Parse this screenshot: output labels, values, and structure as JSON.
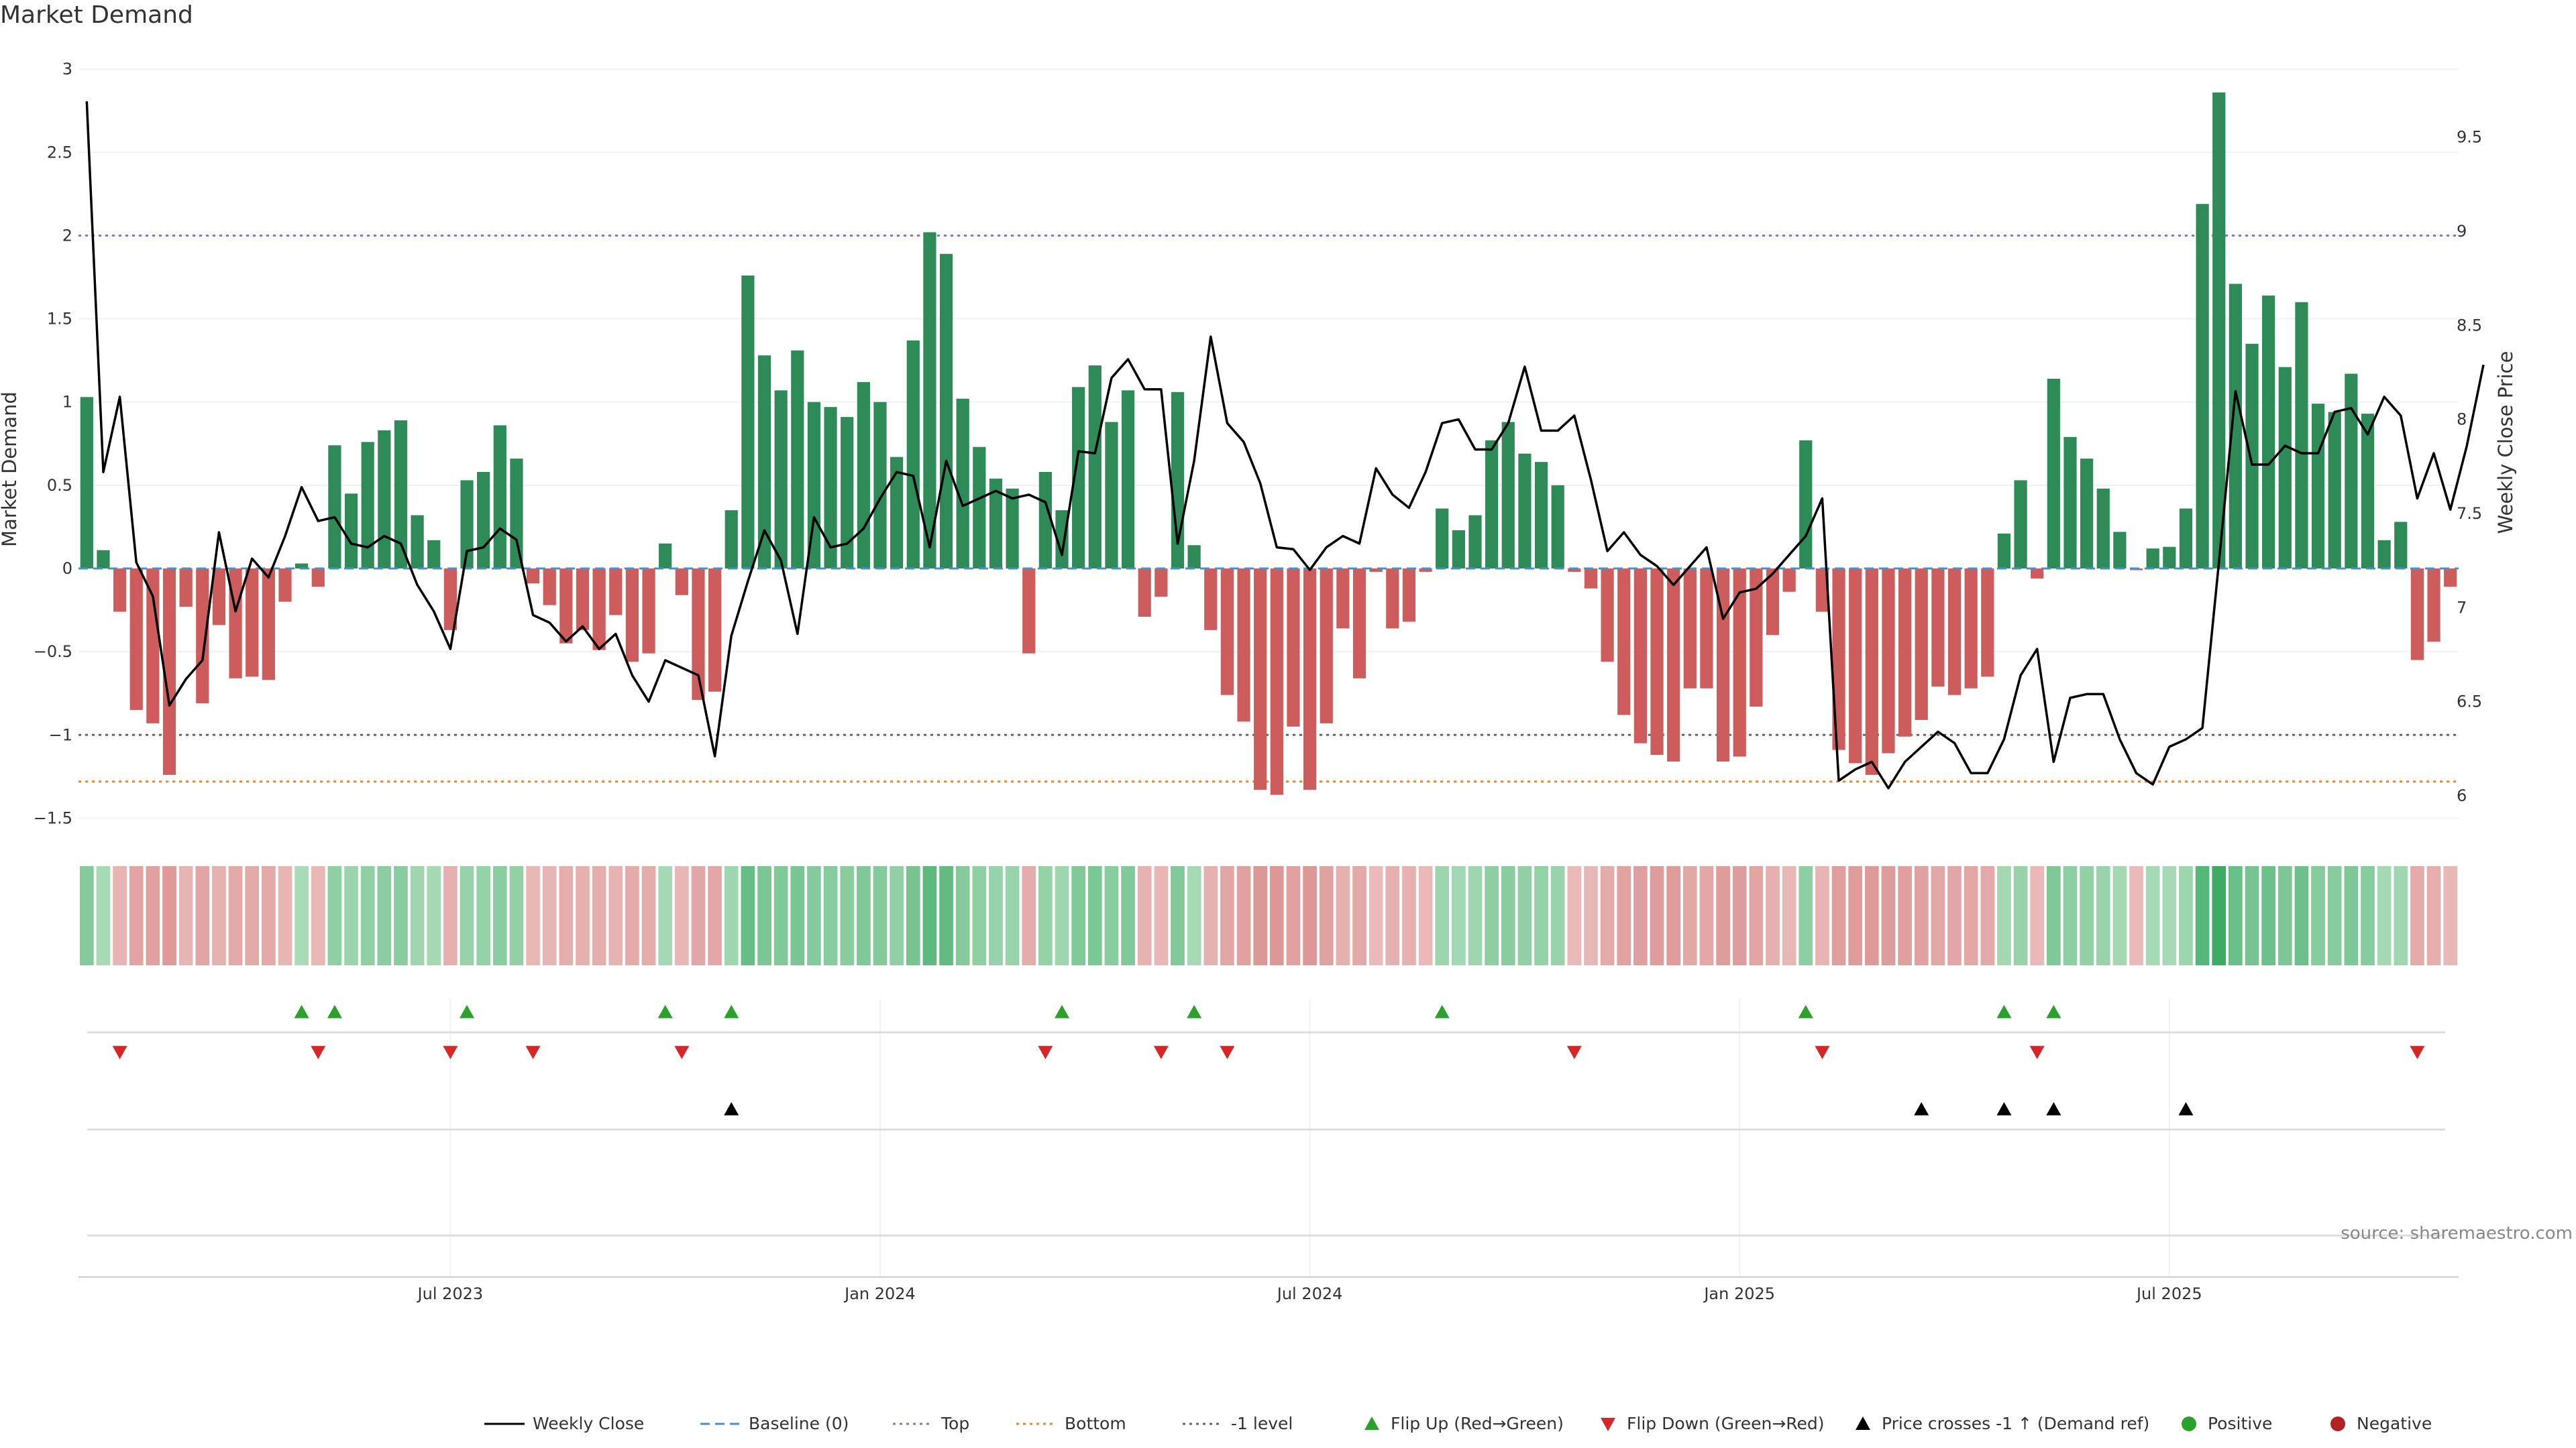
{
  "chart_data": {
    "type": "bar+line",
    "title": "Market Demand",
    "ylabel_left": "Market Demand",
    "ylabel_right": "Weekly Close Price",
    "ylim_left": [
      -1.7,
      3.0
    ],
    "ylim_right": [
      5.85,
      9.85
    ],
    "yticks_left": [
      {
        "v": 3,
        "label": "3"
      },
      {
        "v": 2.5,
        "label": "2.5"
      },
      {
        "v": 2,
        "label": "2"
      },
      {
        "v": 1.5,
        "label": "1.5"
      },
      {
        "v": 1,
        "label": "1"
      },
      {
        "v": 0.5,
        "label": "0.5"
      },
      {
        "v": 0,
        "label": "0"
      },
      {
        "v": -0.5,
        "label": "−0.5"
      },
      {
        "v": -1,
        "label": "−1"
      },
      {
        "v": -1.5,
        "label": "−1.5"
      }
    ],
    "yticks_right": [
      {
        "v": 9.5,
        "label": "9.5"
      },
      {
        "v": 9,
        "label": "9"
      },
      {
        "v": 8.5,
        "label": "8.5"
      },
      {
        "v": 8,
        "label": "8"
      },
      {
        "v": 7.5,
        "label": "7.5"
      },
      {
        "v": 7,
        "label": "7"
      },
      {
        "v": 6.5,
        "label": "6.5"
      },
      {
        "v": 6,
        "label": "6"
      }
    ],
    "xticks": [
      {
        "week": 22,
        "label": "Jul 2023"
      },
      {
        "week": 48,
        "label": "Jan 2024"
      },
      {
        "week": 74,
        "label": "Jul 2024"
      },
      {
        "week": 100,
        "label": "Jan 2025"
      },
      {
        "week": 126,
        "label": "Jul 2025"
      }
    ],
    "levels": {
      "top": 2.0,
      "bottom": -1.28,
      "minus_one": -1.0,
      "baseline": 0
    },
    "demand": [
      1.03,
      0.11,
      -0.26,
      -0.85,
      -0.93,
      -1.24,
      -0.23,
      -0.81,
      -0.34,
      -0.66,
      -0.65,
      -0.67,
      -0.2,
      0.03,
      -0.11,
      0.74,
      0.45,
      0.76,
      0.83,
      0.89,
      0.32,
      0.17,
      -0.37,
      0.53,
      0.58,
      0.86,
      0.66,
      -0.09,
      -0.22,
      -0.45,
      -0.37,
      -0.49,
      -0.28,
      -0.56,
      -0.51,
      0.15,
      -0.16,
      -0.79,
      -0.74,
      0.35,
      1.76,
      1.28,
      1.07,
      1.31,
      1.0,
      0.97,
      0.91,
      1.12,
      1.0,
      0.67,
      1.37,
      2.02,
      1.89,
      1.02,
      0.73,
      0.54,
      0.48,
      -0.51,
      0.58,
      0.35,
      1.09,
      1.22,
      0.88,
      1.07,
      -0.29,
      -0.17,
      1.06,
      0.14,
      -0.37,
      -0.76,
      -0.92,
      -1.33,
      -1.36,
      -0.95,
      -1.33,
      -0.93,
      -0.36,
      -0.66,
      -0.02,
      -0.36,
      -0.32,
      -0.02,
      0.36,
      0.23,
      0.32,
      0.77,
      0.88,
      0.69,
      0.64,
      0.5,
      -0.02,
      -0.12,
      -0.56,
      -0.88,
      -1.05,
      -1.12,
      -1.16,
      -0.72,
      -0.72,
      -1.16,
      -1.13,
      -0.83,
      -0.4,
      -0.14,
      0.77,
      -0.26,
      -1.09,
      -1.17,
      -1.24,
      -1.11,
      -1.01,
      -0.91,
      -0.71,
      -0.76,
      -0.72,
      -0.65,
      0.21,
      0.53,
      -0.06,
      1.14,
      0.79,
      0.66,
      0.48,
      0.22,
      -0.01,
      0.12,
      0.13,
      0.36,
      2.19,
      2.86,
      1.71,
      1.35,
      1.64,
      1.21,
      1.6,
      0.99,
      0.94,
      1.17,
      0.93,
      0.17,
      0.28,
      -0.55,
      -0.44,
      -0.11
    ],
    "weekly_close": [
      9.69,
      7.72,
      8.12,
      7.24,
      7.06,
      6.48,
      6.62,
      6.72,
      7.4,
      6.98,
      7.26,
      7.16,
      7.38,
      7.64,
      7.46,
      7.48,
      7.34,
      7.32,
      7.38,
      7.34,
      7.12,
      6.98,
      6.78,
      7.3,
      7.32,
      7.42,
      7.36,
      6.96,
      6.92,
      6.82,
      6.9,
      6.78,
      6.86,
      6.64,
      6.5,
      6.72,
      6.68,
      6.64,
      6.21,
      6.85,
      7.14,
      7.41,
      7.25,
      6.86,
      7.48,
      7.32,
      7.34,
      7.42,
      7.58,
      7.72,
      7.7,
      7.32,
      7.78,
      7.54,
      7.58,
      7.62,
      7.58,
      7.6,
      7.56,
      7.28,
      7.83,
      7.82,
      8.22,
      8.32,
      8.16,
      8.16,
      7.34,
      7.78,
      8.44,
      7.98,
      7.88,
      7.66,
      7.32,
      7.31,
      7.2,
      7.32,
      7.38,
      7.34,
      7.74,
      7.6,
      7.53,
      7.72,
      7.98,
      8.0,
      7.84,
      7.84,
      7.98,
      8.28,
      7.94,
      7.94,
      8.02,
      7.68,
      7.3,
      7.4,
      7.28,
      7.22,
      7.12,
      7.22,
      7.32,
      6.94,
      7.08,
      7.1,
      7.18,
      7.28,
      7.38,
      7.58,
      6.08,
      6.14,
      6.18,
      6.04,
      6.18,
      6.26,
      6.34,
      6.28,
      6.12,
      6.12,
      6.3,
      6.64,
      6.78,
      6.18,
      6.52,
      6.54,
      6.54,
      6.3,
      6.12,
      6.06,
      6.26,
      6.3,
      6.36,
      7.24,
      8.15,
      7.76,
      7.76,
      7.86,
      7.82,
      7.82,
      8.04,
      8.06,
      7.92,
      8.12,
      8.02,
      7.58,
      7.82,
      7.52,
      7.86,
      8.29
    ],
    "intensity_strip_note": "color shade of each week mirrors demand magnitude",
    "flip_up_weeks": [
      13,
      15,
      23,
      35,
      39,
      59,
      67,
      82,
      104,
      116,
      119
    ],
    "flip_down_weeks": [
      2,
      14,
      22,
      27,
      36,
      58,
      65,
      69,
      90,
      105,
      118,
      141
    ],
    "price_cross_weeks": [
      39,
      111,
      116,
      119,
      127
    ],
    "source": "source: sharemaestro.com",
    "legend": [
      {
        "label": "Weekly Close",
        "kind": "line-solid",
        "color": "#000000"
      },
      {
        "label": "Baseline (0)",
        "kind": "line-dash",
        "color": "#4a90c8"
      },
      {
        "label": "Top",
        "kind": "line-dot",
        "color": "#7b7bb0"
      },
      {
        "label": "Bottom",
        "kind": "line-dot",
        "color": "#e08a30"
      },
      {
        "label": "-1 level",
        "kind": "line-dot",
        "color": "#666666"
      },
      {
        "label": "Flip Up (Red→Green)",
        "kind": "tri-up",
        "color": "#2ca02c"
      },
      {
        "label": "Flip Down (Green→Red)",
        "kind": "tri-down",
        "color": "#d62728"
      },
      {
        "label": "Price crosses -1 ↑ (Demand ref)",
        "kind": "tri-up",
        "color": "#000000"
      },
      {
        "label": "Positive",
        "kind": "dot",
        "color": "#2ca02c"
      },
      {
        "label": "Negative",
        "kind": "dot",
        "color": "#b22222"
      }
    ],
    "colors": {
      "positive": "#2e8b57",
      "negative": "#cd5c5c"
    }
  }
}
